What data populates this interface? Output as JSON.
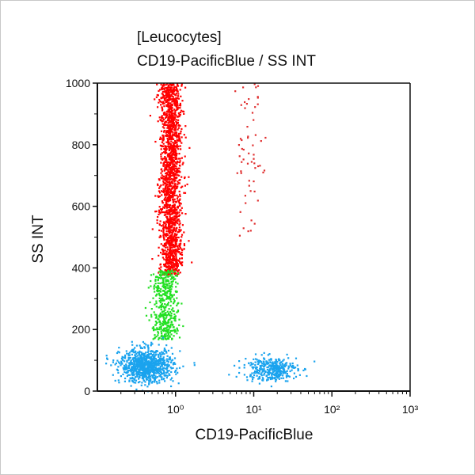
{
  "chart_data": {
    "type": "scatter",
    "title": "[Leucocytes]",
    "subtitle": "CD19-PacificBlue / SS INT",
    "xlabel": "CD19-PacificBlue",
    "ylabel": "SS INT",
    "xscale": "log",
    "xlim": [
      0.1,
      1000
    ],
    "ylim": [
      0,
      1000
    ],
    "xticks": [
      {
        "value": 1,
        "label": "10⁰"
      },
      {
        "value": 10,
        "label": "10¹"
      },
      {
        "value": 100,
        "label": "10²"
      },
      {
        "value": 1000,
        "label": "10³"
      }
    ],
    "yticks": [
      0,
      200,
      400,
      600,
      800,
      1000
    ],
    "grid": false,
    "populations": [
      {
        "color": "#ff0000",
        "x_center": 0.85,
        "x_spread_log": 0.07,
        "y_range": [
          380,
          1000
        ],
        "count": 1800
      },
      {
        "color": "#22e022",
        "x_center": 0.72,
        "x_spread_log": 0.08,
        "y_range": [
          170,
          395
        ],
        "count": 450
      },
      {
        "color": "#1aa3ee",
        "x_center": 0.42,
        "x_spread_log": 0.17,
        "y_range": [
          30,
          140
        ],
        "count": 900
      },
      {
        "color": "#1aa3ee",
        "x_center": 16,
        "x_spread_log": 0.17,
        "y_range": [
          35,
          115
        ],
        "count": 350
      },
      {
        "color": "#e03030",
        "x_center": 9,
        "x_spread_log": 0.08,
        "y_range": [
          500,
          1000
        ],
        "count": 60
      }
    ]
  }
}
